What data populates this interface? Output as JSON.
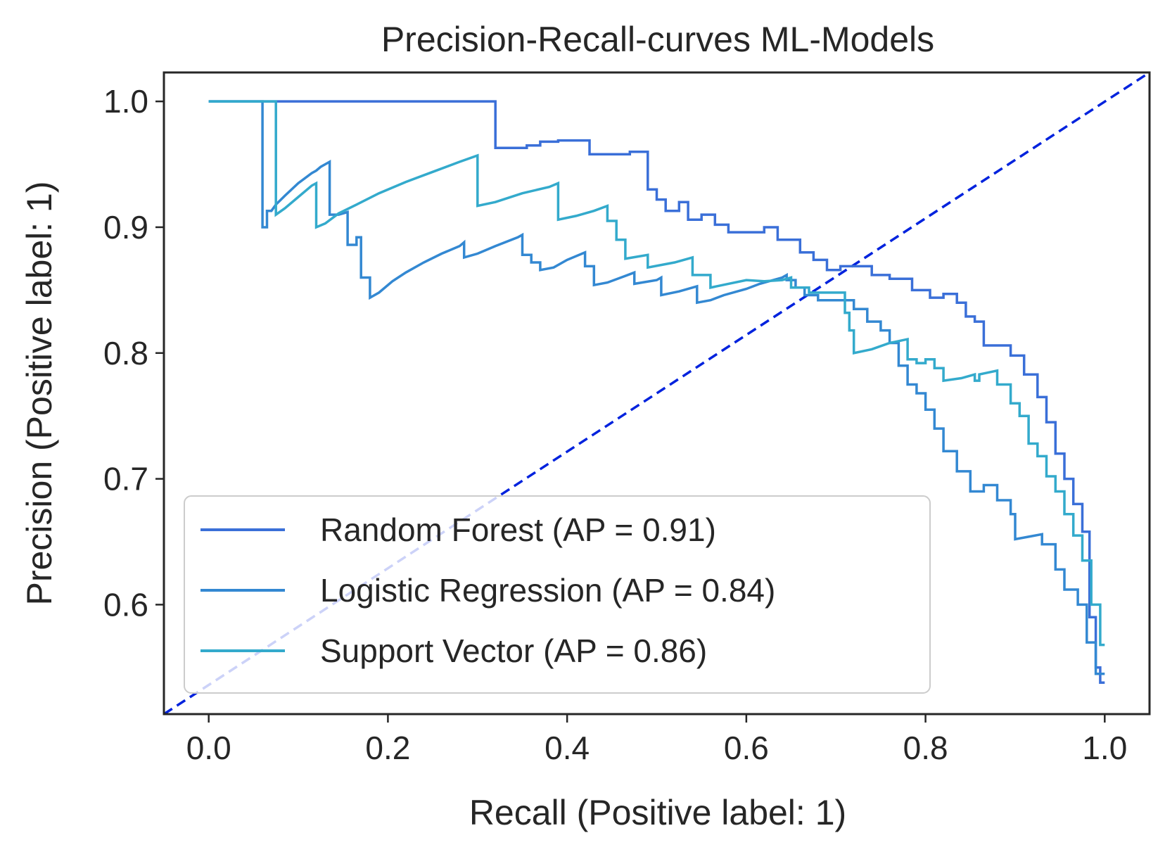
{
  "chart_data": {
    "type": "line",
    "title": "Precision-Recall-curves ML-Models",
    "xlabel": "Recall (Positive label: 1)",
    "ylabel": "Precision (Positive label: 1)",
    "xlim": [
      -0.05,
      1.05
    ],
    "ylim": [
      0.513,
      1.023
    ],
    "xticks": [
      "0.0",
      "0.2",
      "0.4",
      "0.6",
      "0.8",
      "1.0"
    ],
    "xtick_values": [
      0.0,
      0.2,
      0.4,
      0.6,
      0.8,
      1.0
    ],
    "yticks": [
      "0.6",
      "0.7",
      "0.8",
      "0.9",
      "1.0"
    ],
    "ytick_values": [
      0.6,
      0.7,
      0.8,
      0.9,
      1.0
    ],
    "grid": false,
    "legend_position": "lower-left",
    "reference_line": {
      "style": "dashed",
      "color": "#0022dd",
      "from": [
        -0.05,
        0.513
      ],
      "to": [
        1.05,
        1.023
      ]
    },
    "series": [
      {
        "name": "Random Forest (AP = 0.91)",
        "color": "#3a6fd8",
        "points": [
          [
            0.0,
            1.0
          ],
          [
            0.32,
            1.0
          ],
          [
            0.32,
            0.963
          ],
          [
            0.355,
            0.963
          ],
          [
            0.355,
            0.965
          ],
          [
            0.37,
            0.965
          ],
          [
            0.37,
            0.968
          ],
          [
            0.39,
            0.968
          ],
          [
            0.39,
            0.969
          ],
          [
            0.425,
            0.969
          ],
          [
            0.425,
            0.958
          ],
          [
            0.47,
            0.958
          ],
          [
            0.47,
            0.96
          ],
          [
            0.49,
            0.96
          ],
          [
            0.49,
            0.93
          ],
          [
            0.5,
            0.93
          ],
          [
            0.5,
            0.922
          ],
          [
            0.51,
            0.922
          ],
          [
            0.51,
            0.913
          ],
          [
            0.525,
            0.913
          ],
          [
            0.525,
            0.92
          ],
          [
            0.535,
            0.92
          ],
          [
            0.535,
            0.906
          ],
          [
            0.55,
            0.906
          ],
          [
            0.55,
            0.91
          ],
          [
            0.565,
            0.91
          ],
          [
            0.565,
            0.902
          ],
          [
            0.58,
            0.902
          ],
          [
            0.58,
            0.896
          ],
          [
            0.62,
            0.896
          ],
          [
            0.62,
            0.9
          ],
          [
            0.635,
            0.9
          ],
          [
            0.635,
            0.89
          ],
          [
            0.66,
            0.89
          ],
          [
            0.66,
            0.88
          ],
          [
            0.675,
            0.88
          ],
          [
            0.675,
            0.874
          ],
          [
            0.69,
            0.874
          ],
          [
            0.69,
            0.866
          ],
          [
            0.705,
            0.866
          ],
          [
            0.705,
            0.869
          ],
          [
            0.74,
            0.869
          ],
          [
            0.74,
            0.862
          ],
          [
            0.76,
            0.862
          ],
          [
            0.76,
            0.859
          ],
          [
            0.785,
            0.859
          ],
          [
            0.785,
            0.85
          ],
          [
            0.805,
            0.85
          ],
          [
            0.805,
            0.844
          ],
          [
            0.82,
            0.844
          ],
          [
            0.82,
            0.847
          ],
          [
            0.835,
            0.847
          ],
          [
            0.835,
            0.84
          ],
          [
            0.845,
            0.84
          ],
          [
            0.845,
            0.829
          ],
          [
            0.855,
            0.829
          ],
          [
            0.855,
            0.825
          ],
          [
            0.865,
            0.825
          ],
          [
            0.865,
            0.806
          ],
          [
            0.895,
            0.806
          ],
          [
            0.895,
            0.798
          ],
          [
            0.91,
            0.798
          ],
          [
            0.91,
            0.783
          ],
          [
            0.925,
            0.783
          ],
          [
            0.925,
            0.765
          ],
          [
            0.935,
            0.765
          ],
          [
            0.935,
            0.745
          ],
          [
            0.945,
            0.745
          ],
          [
            0.945,
            0.72
          ],
          [
            0.955,
            0.72
          ],
          [
            0.955,
            0.7
          ],
          [
            0.965,
            0.7
          ],
          [
            0.965,
            0.68
          ],
          [
            0.975,
            0.68
          ],
          [
            0.975,
            0.658
          ],
          [
            0.983,
            0.658
          ],
          [
            0.983,
            0.59
          ],
          [
            0.99,
            0.59
          ],
          [
            0.99,
            0.55
          ],
          [
            0.995,
            0.55
          ],
          [
            0.995,
            0.538
          ],
          [
            1.0,
            0.538
          ]
        ]
      },
      {
        "name": "Logistic Regression (AP = 0.84)",
        "color": "#3388d2",
        "points": [
          [
            0.0,
            1.0
          ],
          [
            0.06,
            1.0
          ],
          [
            0.06,
            0.9
          ],
          [
            0.065,
            0.9
          ],
          [
            0.065,
            0.913
          ],
          [
            0.07,
            0.913
          ],
          [
            0.075,
            0.918
          ],
          [
            0.085,
            0.925
          ],
          [
            0.1,
            0.935
          ],
          [
            0.115,
            0.943
          ],
          [
            0.12,
            0.945
          ],
          [
            0.125,
            0.948
          ],
          [
            0.13,
            0.95
          ],
          [
            0.135,
            0.952
          ],
          [
            0.135,
            0.91
          ],
          [
            0.145,
            0.91
          ],
          [
            0.155,
            0.912
          ],
          [
            0.155,
            0.886
          ],
          [
            0.165,
            0.886
          ],
          [
            0.165,
            0.892
          ],
          [
            0.17,
            0.892
          ],
          [
            0.17,
            0.86
          ],
          [
            0.18,
            0.86
          ],
          [
            0.18,
            0.844
          ],
          [
            0.19,
            0.848
          ],
          [
            0.205,
            0.857
          ],
          [
            0.22,
            0.864
          ],
          [
            0.24,
            0.872
          ],
          [
            0.26,
            0.879
          ],
          [
            0.28,
            0.885
          ],
          [
            0.285,
            0.888
          ],
          [
            0.285,
            0.876
          ],
          [
            0.3,
            0.879
          ],
          [
            0.32,
            0.885
          ],
          [
            0.345,
            0.892
          ],
          [
            0.35,
            0.894
          ],
          [
            0.35,
            0.878
          ],
          [
            0.36,
            0.878
          ],
          [
            0.36,
            0.872
          ],
          [
            0.37,
            0.872
          ],
          [
            0.37,
            0.866
          ],
          [
            0.385,
            0.868
          ],
          [
            0.4,
            0.874
          ],
          [
            0.42,
            0.88
          ],
          [
            0.42,
            0.869
          ],
          [
            0.43,
            0.869
          ],
          [
            0.43,
            0.854
          ],
          [
            0.445,
            0.856
          ],
          [
            0.46,
            0.86
          ],
          [
            0.475,
            0.864
          ],
          [
            0.475,
            0.855
          ],
          [
            0.5,
            0.858
          ],
          [
            0.505,
            0.86
          ],
          [
            0.505,
            0.846
          ],
          [
            0.525,
            0.849
          ],
          [
            0.545,
            0.853
          ],
          [
            0.545,
            0.84
          ],
          [
            0.56,
            0.842
          ],
          [
            0.575,
            0.846
          ],
          [
            0.6,
            0.851
          ],
          [
            0.615,
            0.855
          ],
          [
            0.64,
            0.86
          ],
          [
            0.645,
            0.862
          ],
          [
            0.645,
            0.858
          ],
          [
            0.655,
            0.858
          ],
          [
            0.655,
            0.852
          ],
          [
            0.665,
            0.852
          ],
          [
            0.665,
            0.846
          ],
          [
            0.68,
            0.846
          ],
          [
            0.68,
            0.842
          ],
          [
            0.72,
            0.842
          ],
          [
            0.72,
            0.835
          ],
          [
            0.735,
            0.835
          ],
          [
            0.735,
            0.825
          ],
          [
            0.75,
            0.825
          ],
          [
            0.75,
            0.818
          ],
          [
            0.76,
            0.818
          ],
          [
            0.76,
            0.808
          ],
          [
            0.77,
            0.808
          ],
          [
            0.77,
            0.79
          ],
          [
            0.78,
            0.79
          ],
          [
            0.78,
            0.775
          ],
          [
            0.79,
            0.775
          ],
          [
            0.79,
            0.768
          ],
          [
            0.8,
            0.768
          ],
          [
            0.8,
            0.755
          ],
          [
            0.81,
            0.755
          ],
          [
            0.81,
            0.74
          ],
          [
            0.82,
            0.74
          ],
          [
            0.82,
            0.722
          ],
          [
            0.835,
            0.722
          ],
          [
            0.835,
            0.706
          ],
          [
            0.85,
            0.706
          ],
          [
            0.85,
            0.69
          ],
          [
            0.865,
            0.69
          ],
          [
            0.865,
            0.695
          ],
          [
            0.88,
            0.695
          ],
          [
            0.88,
            0.683
          ],
          [
            0.895,
            0.683
          ],
          [
            0.895,
            0.672
          ],
          [
            0.9,
            0.672
          ],
          [
            0.9,
            0.652
          ],
          [
            0.915,
            0.654
          ],
          [
            0.93,
            0.656
          ],
          [
            0.93,
            0.648
          ],
          [
            0.945,
            0.648
          ],
          [
            0.945,
            0.628
          ],
          [
            0.955,
            0.628
          ],
          [
            0.955,
            0.612
          ],
          [
            0.97,
            0.612
          ],
          [
            0.97,
            0.6
          ],
          [
            0.98,
            0.6
          ],
          [
            0.98,
            0.57
          ],
          [
            0.99,
            0.57
          ],
          [
            0.99,
            0.545
          ],
          [
            1.0,
            0.545
          ]
        ]
      },
      {
        "name": "Support Vector (AP = 0.86)",
        "color": "#33aacc",
        "points": [
          [
            0.0,
            1.0
          ],
          [
            0.075,
            1.0
          ],
          [
            0.075,
            0.91
          ],
          [
            0.085,
            0.915
          ],
          [
            0.1,
            0.924
          ],
          [
            0.115,
            0.933
          ],
          [
            0.12,
            0.935
          ],
          [
            0.12,
            0.9
          ],
          [
            0.13,
            0.903
          ],
          [
            0.145,
            0.911
          ],
          [
            0.165,
            0.918
          ],
          [
            0.19,
            0.927
          ],
          [
            0.22,
            0.936
          ],
          [
            0.25,
            0.944
          ],
          [
            0.28,
            0.952
          ],
          [
            0.3,
            0.957
          ],
          [
            0.3,
            0.917
          ],
          [
            0.32,
            0.92
          ],
          [
            0.35,
            0.927
          ],
          [
            0.38,
            0.932
          ],
          [
            0.39,
            0.935
          ],
          [
            0.39,
            0.906
          ],
          [
            0.41,
            0.909
          ],
          [
            0.43,
            0.913
          ],
          [
            0.445,
            0.917
          ],
          [
            0.445,
            0.905
          ],
          [
            0.455,
            0.905
          ],
          [
            0.455,
            0.89
          ],
          [
            0.465,
            0.89
          ],
          [
            0.465,
            0.875
          ],
          [
            0.49,
            0.878
          ],
          [
            0.49,
            0.868
          ],
          [
            0.52,
            0.872
          ],
          [
            0.54,
            0.876
          ],
          [
            0.54,
            0.862
          ],
          [
            0.56,
            0.862
          ],
          [
            0.56,
            0.852
          ],
          [
            0.58,
            0.855
          ],
          [
            0.6,
            0.858
          ],
          [
            0.62,
            0.857
          ],
          [
            0.64,
            0.858
          ],
          [
            0.65,
            0.86
          ],
          [
            0.65,
            0.852
          ],
          [
            0.67,
            0.852
          ],
          [
            0.67,
            0.848
          ],
          [
            0.71,
            0.848
          ],
          [
            0.71,
            0.832
          ],
          [
            0.715,
            0.832
          ],
          [
            0.715,
            0.818
          ],
          [
            0.72,
            0.818
          ],
          [
            0.72,
            0.8
          ],
          [
            0.74,
            0.803
          ],
          [
            0.76,
            0.808
          ],
          [
            0.78,
            0.811
          ],
          [
            0.78,
            0.795
          ],
          [
            0.79,
            0.795
          ],
          [
            0.79,
            0.792
          ],
          [
            0.8,
            0.792
          ],
          [
            0.8,
            0.795
          ],
          [
            0.81,
            0.795
          ],
          [
            0.81,
            0.788
          ],
          [
            0.82,
            0.788
          ],
          [
            0.82,
            0.778
          ],
          [
            0.84,
            0.78
          ],
          [
            0.855,
            0.783
          ],
          [
            0.855,
            0.778
          ],
          [
            0.86,
            0.778
          ],
          [
            0.86,
            0.783
          ],
          [
            0.88,
            0.786
          ],
          [
            0.88,
            0.775
          ],
          [
            0.895,
            0.775
          ],
          [
            0.895,
            0.76
          ],
          [
            0.905,
            0.76
          ],
          [
            0.905,
            0.75
          ],
          [
            0.915,
            0.75
          ],
          [
            0.915,
            0.728
          ],
          [
            0.925,
            0.728
          ],
          [
            0.925,
            0.718
          ],
          [
            0.935,
            0.718
          ],
          [
            0.935,
            0.702
          ],
          [
            0.945,
            0.702
          ],
          [
            0.945,
            0.69
          ],
          [
            0.955,
            0.69
          ],
          [
            0.955,
            0.672
          ],
          [
            0.965,
            0.672
          ],
          [
            0.965,
            0.655
          ],
          [
            0.975,
            0.655
          ],
          [
            0.975,
            0.635
          ],
          [
            0.985,
            0.635
          ],
          [
            0.985,
            0.6
          ],
          [
            0.995,
            0.6
          ],
          [
            0.995,
            0.568
          ],
          [
            1.0,
            0.568
          ]
        ]
      }
    ]
  }
}
